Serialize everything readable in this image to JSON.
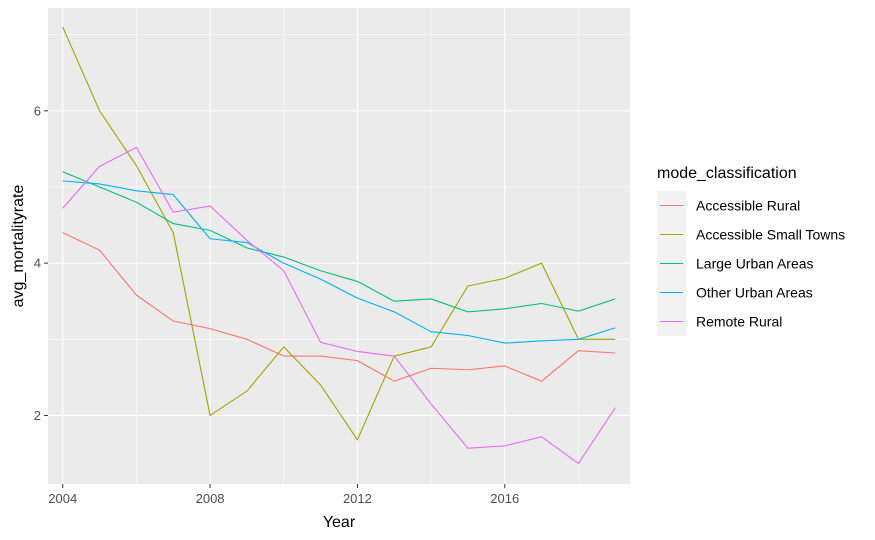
{
  "chart_data": {
    "type": "line",
    "xlabel": "Year",
    "ylabel": "avg_mortalityrate",
    "xlim": [
      2003.6,
      2019.4
    ],
    "ylim": [
      1.1,
      7.35
    ],
    "x_ticks": [
      2004,
      2008,
      2012,
      2016
    ],
    "y_ticks": [
      2,
      4,
      6
    ],
    "x_tick_labels": [
      "2004",
      "2008",
      "2012",
      "2016"
    ],
    "y_tick_labels": [
      "2",
      "4",
      "6"
    ],
    "x": [
      2004,
      2005,
      2006,
      2007,
      2008,
      2009,
      2010,
      2011,
      2012,
      2013,
      2014,
      2015,
      2016,
      2017,
      2018,
      2019
    ],
    "grid": true,
    "legend_title": "mode_classification",
    "legend_position": "right",
    "series": [
      {
        "name": "Accessible Rural",
        "color": "#F8766D",
        "values": [
          4.4,
          4.17,
          3.58,
          3.24,
          3.14,
          3.0,
          2.78,
          2.78,
          2.72,
          2.45,
          2.62,
          2.6,
          2.65,
          2.45,
          2.85,
          2.82
        ]
      },
      {
        "name": "Accessible Small Towns",
        "color": "#A3A500",
        "values": [
          7.1,
          6.0,
          5.28,
          4.4,
          2.0,
          2.32,
          2.9,
          2.4,
          1.68,
          2.78,
          2.9,
          3.7,
          3.8,
          4.0,
          3.0,
          3.0
        ]
      },
      {
        "name": "Large Urban Areas",
        "color": "#00BF7D",
        "values": [
          5.2,
          5.0,
          4.8,
          4.52,
          4.43,
          4.2,
          4.08,
          3.9,
          3.76,
          3.5,
          3.53,
          3.36,
          3.4,
          3.47,
          3.37,
          3.53
        ]
      },
      {
        "name": "Other Urban Areas",
        "color": "#00B0F6",
        "values": [
          5.08,
          5.04,
          4.95,
          4.9,
          4.32,
          4.27,
          4.0,
          3.79,
          3.54,
          3.36,
          3.1,
          3.05,
          2.95,
          2.98,
          3.0,
          3.15
        ]
      },
      {
        "name": "Remote Rural",
        "color": "#E76BF3",
        "values": [
          4.72,
          5.27,
          5.52,
          4.67,
          4.75,
          4.3,
          3.9,
          2.96,
          2.84,
          2.78,
          2.15,
          1.57,
          1.6,
          1.72,
          1.37,
          2.1
        ]
      }
    ]
  }
}
